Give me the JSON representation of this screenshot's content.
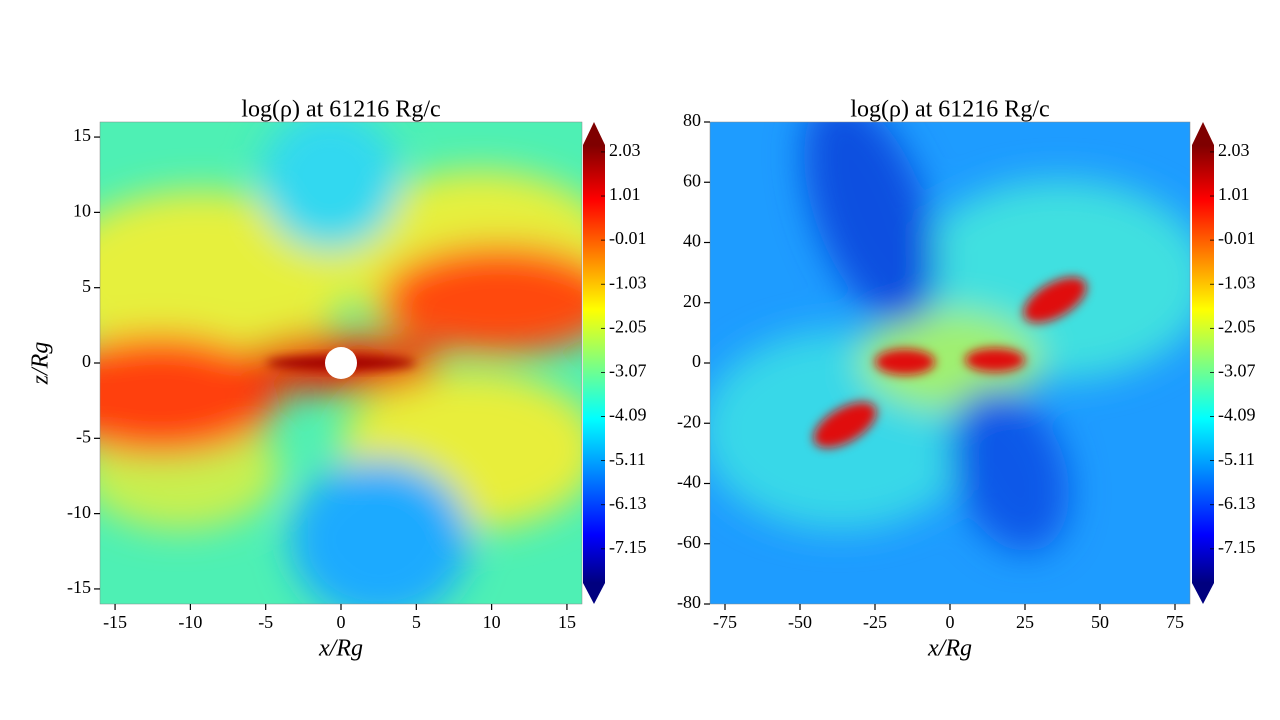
{
  "chart_data": [
    {
      "type": "heatmap",
      "title": "log(ρ) at 61216 Rg/c",
      "x_label": "x/Rg",
      "y_label": "z/Rg",
      "xlim": [
        -16,
        16
      ],
      "xticks": [
        -15,
        -10,
        -5,
        0,
        5,
        10,
        15
      ],
      "ylim": [
        -16,
        16
      ],
      "yticks": [
        -15,
        -10,
        -5,
        0,
        5,
        10,
        15
      ],
      "clim": [
        -7.94,
        2.19
      ],
      "cticks": [
        2.03,
        1.01,
        -0.01,
        -1.03,
        -2.05,
        -3.07,
        -4.09,
        -5.11,
        -6.13,
        -7.15
      ]
    },
    {
      "type": "heatmap",
      "title": "log(ρ) at 61216 Rg/c",
      "x_label": "x/Rg",
      "xlim": [
        -80,
        80
      ],
      "xticks": [
        -75,
        -50,
        -25,
        0,
        25,
        50,
        75
      ],
      "ylim": [
        -80,
        80
      ],
      "yticks": [
        -80,
        -60,
        -40,
        -20,
        0,
        20,
        40,
        60,
        80
      ],
      "clim": [
        -7.94,
        2.19
      ],
      "cticks": [
        2.03,
        1.01,
        -0.01,
        -1.03,
        -2.05,
        -3.07,
        -4.09,
        -5.11,
        -6.13,
        -7.15
      ]
    }
  ]
}
